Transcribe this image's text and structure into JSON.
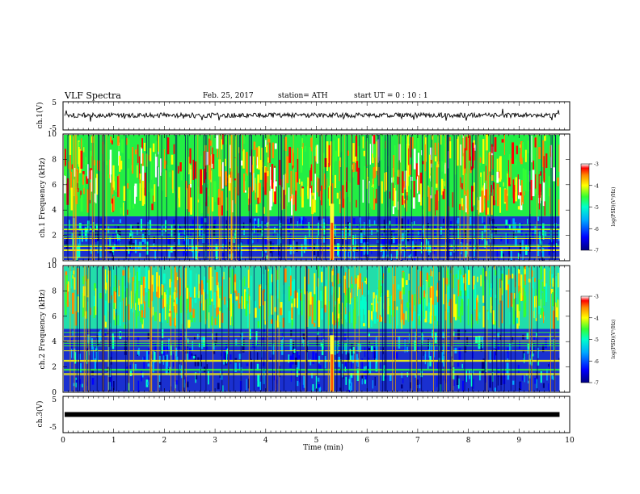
{
  "header": {
    "title": "VLF Spectra",
    "date": "Feb. 25, 2017",
    "station": "station= ATH",
    "start_ut": "start  UT =   0  : 10 : 1"
  },
  "chart_data": [
    {
      "type": "line",
      "panel": "ch1-waveform",
      "ylabel": "ch.1(V)",
      "yticks": [
        "5",
        "-5"
      ],
      "ylim": [
        -5,
        5
      ],
      "xlim": [
        0,
        10
      ],
      "data_extent_min": [
        0,
        9.8
      ],
      "series": [
        {
          "x": [
            0,
            1,
            2,
            3,
            4,
            5,
            6,
            7,
            8,
            9,
            9.8
          ],
          "y": [
            0,
            0.2,
            -0.1,
            0.1,
            0.2,
            0.1,
            0,
            0.1,
            0.2,
            0.1,
            0
          ]
        }
      ]
    },
    {
      "type": "heatmap",
      "panel": "ch1-spectrogram",
      "ylabel": "ch.1 Frequency (kHz)",
      "xlim": [
        0,
        10
      ],
      "ylim": [
        0,
        10
      ],
      "yticks": [
        "0",
        "2",
        "4",
        "6",
        "8",
        "10"
      ],
      "colorbar_label": "log(PSD)(V²/Hz)",
      "colorbar_ticks": [
        "-3",
        "-4",
        "-5",
        "-6",
        "-7"
      ],
      "colorbar_range": [
        -7,
        -3
      ],
      "features": {
        "broadband_impulse_min": 5.3,
        "lower_band_khz": [
          0,
          3.5
        ]
      }
    },
    {
      "type": "heatmap",
      "panel": "ch2-spectrogram",
      "ylabel": "ch.2 Frequency (kHz)",
      "xlim": [
        0,
        10
      ],
      "ylim": [
        0,
        10
      ],
      "yticks": [
        "0",
        "2",
        "4",
        "6",
        "8",
        "10"
      ],
      "colorbar_label": "log(PSD)(V²/Hz)",
      "colorbar_ticks": [
        "-3",
        "-4",
        "-5",
        "-6",
        "-7"
      ],
      "colorbar_range": [
        -7,
        -3
      ],
      "features": {
        "broadband_impulse_min": 5.3,
        "lower_band_khz": [
          0,
          5
        ]
      }
    },
    {
      "type": "line",
      "panel": "ch3-waveform",
      "ylabel": "ch.3(V)",
      "yticks": [
        "5",
        "-5"
      ],
      "ylim": [
        -5,
        5
      ],
      "xlim": [
        0,
        10
      ],
      "xlabel": "Time  (min)",
      "xticks": [
        "0",
        "1",
        "2",
        "3",
        "4",
        "5",
        "6",
        "7",
        "8",
        "9",
        "10"
      ],
      "series": [
        {
          "x": [
            0,
            9.8
          ],
          "y": [
            0,
            0
          ]
        }
      ]
    }
  ],
  "colors": {
    "line": "#000000",
    "colormap": [
      "#000080",
      "#0000ff",
      "#00aaff",
      "#00ffcc",
      "#33ff33",
      "#ffff00",
      "#ff8800",
      "#ff0000",
      "#ffffff"
    ]
  }
}
